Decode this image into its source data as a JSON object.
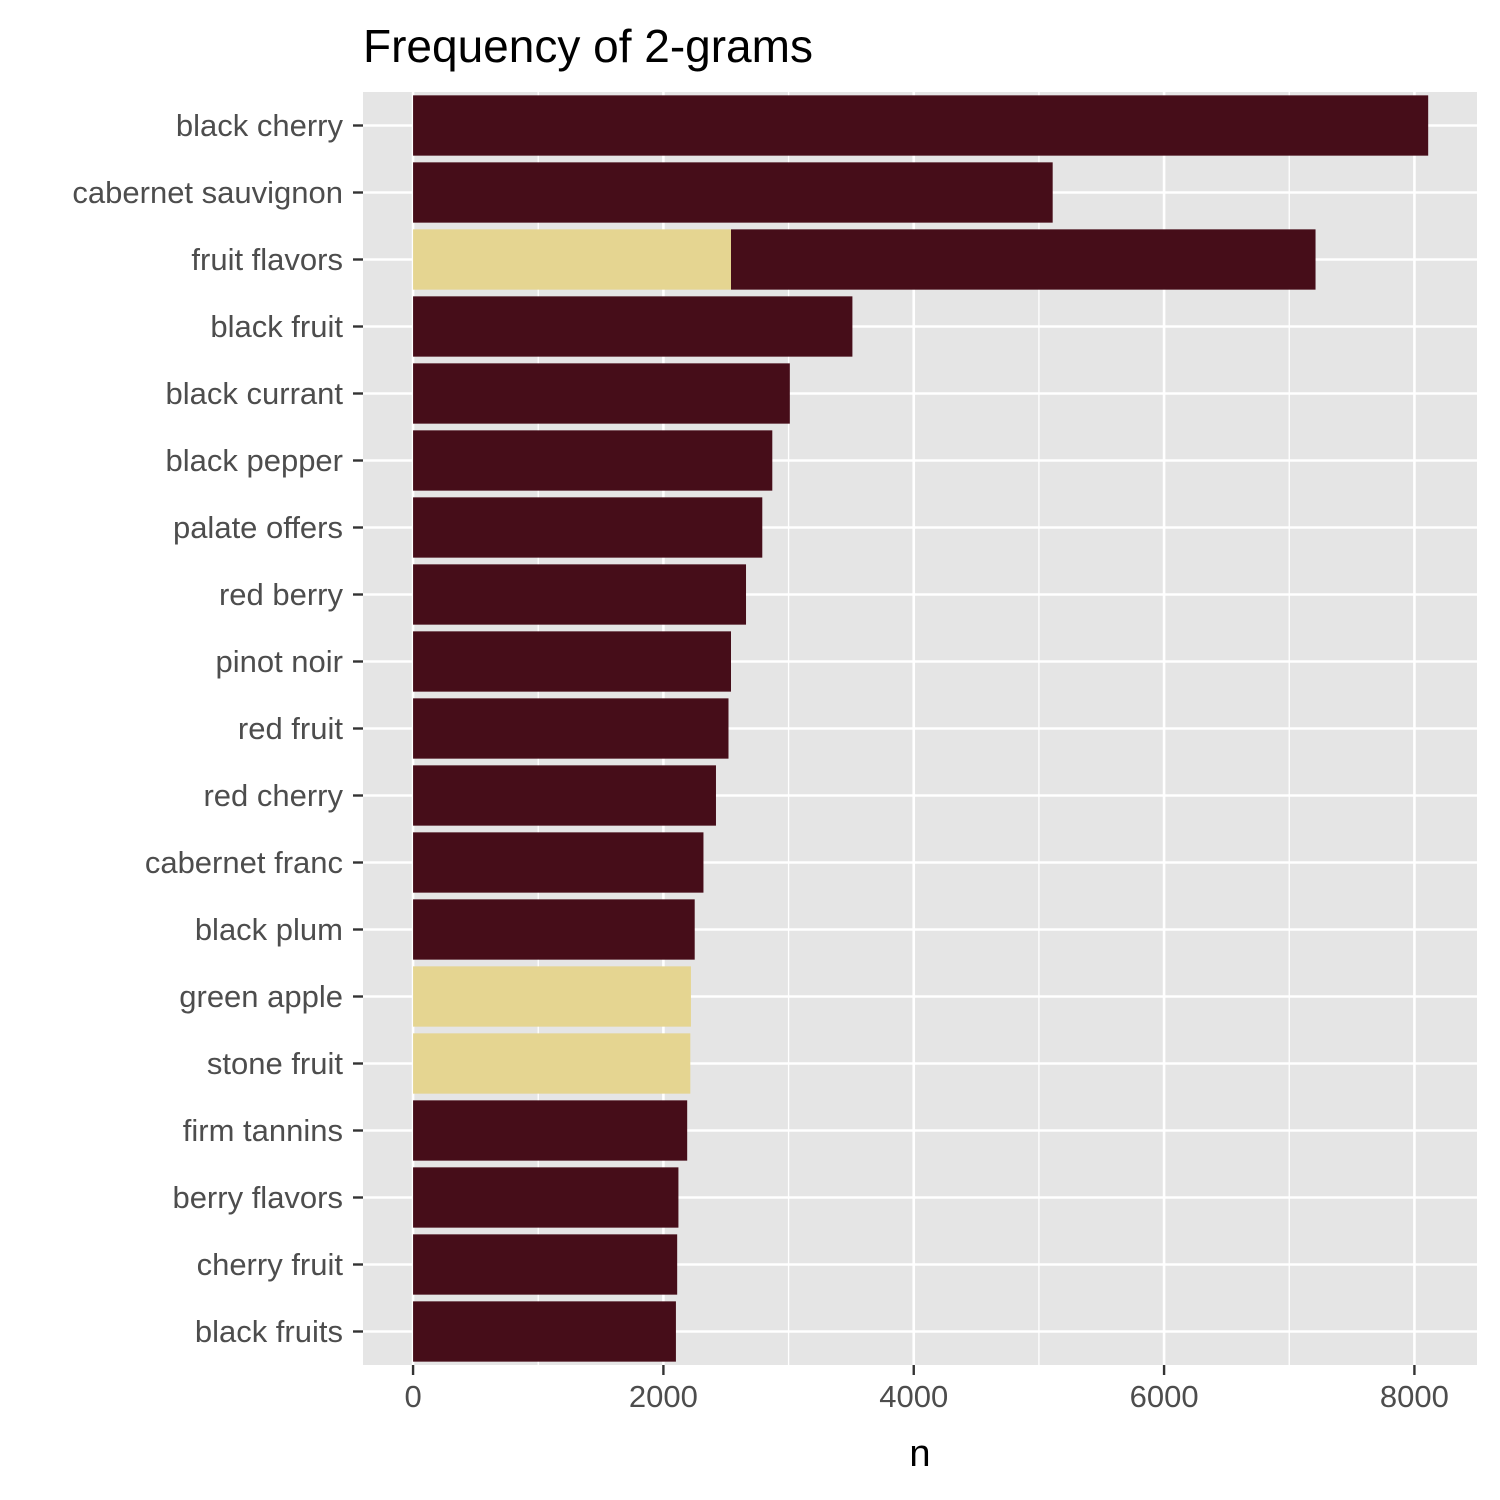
{
  "chart_data": {
    "type": "bar",
    "orientation": "horizontal",
    "stacked": true,
    "title": "Frequency of 2-grams",
    "xlabel": "n",
    "ylabel": "",
    "xlim": [
      -400,
      8500
    ],
    "x_ticks": [
      0,
      2000,
      4000,
      6000,
      8000
    ],
    "grid": true,
    "legend": "none",
    "categories": [
      "black cherry",
      "cabernet sauvignon",
      "fruit flavors",
      "black fruit",
      "black currant",
      "black pepper",
      "palate offers",
      "red berry",
      "pinot noir",
      "red fruit",
      "red cherry",
      "cabernet franc",
      "black plum",
      "green apple",
      "stone fruit",
      "firm tannins",
      "berry flavors",
      "cherry fruit",
      "black fruits"
    ],
    "series": [
      {
        "color": "#e5d591",
        "values": [
          0,
          0,
          2540,
          0,
          0,
          0,
          0,
          0,
          0,
          0,
          0,
          0,
          0,
          2220,
          2215,
          0,
          0,
          0,
          0
        ]
      },
      {
        "color": "#460d19",
        "values": [
          8110,
          5110,
          4670,
          3510,
          3010,
          2870,
          2790,
          2660,
          2540,
          2520,
          2420,
          2320,
          2250,
          0,
          0,
          2190,
          2120,
          2110,
          2100
        ]
      }
    ]
  },
  "colors": {
    "panel_background": "#e5e5e5",
    "gridline": "#ffffff"
  }
}
